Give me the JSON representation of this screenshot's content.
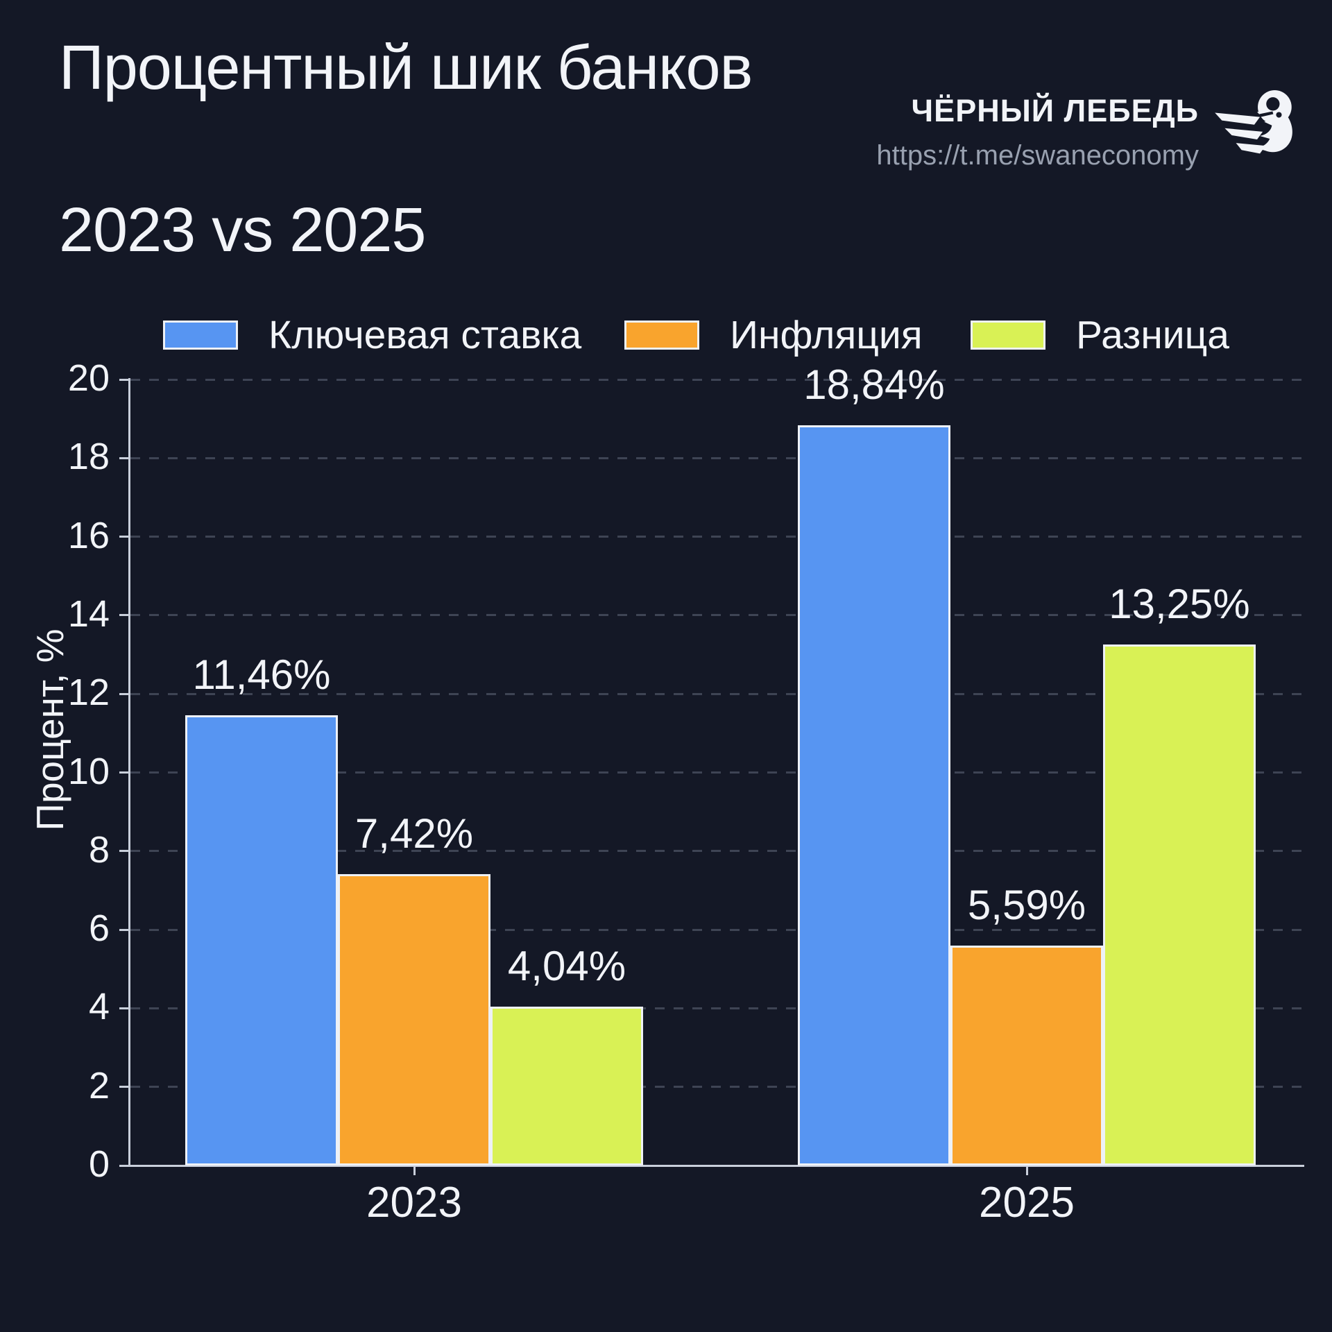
{
  "header": {
    "title_line1": "Процентный шик банков",
    "title_line2": "2023 vs 2025",
    "brand_name": "ЧЁРНЫЙ ЛЕБЕДЬ",
    "brand_url": "https://t.me/swaneconomy",
    "logo_icon": "swan-logo"
  },
  "chart_data": {
    "type": "bar",
    "title": "Процентный шик банков 2023 vs 2025",
    "categories": [
      "2023",
      "2025"
    ],
    "series": [
      {
        "name": "Ключевая ставка",
        "color": "#5795f2",
        "values": [
          11.46,
          18.84
        ],
        "value_labels": [
          "11,46%",
          "18,84%"
        ]
      },
      {
        "name": "Инфляция",
        "color": "#f9a42d",
        "values": [
          7.42,
          5.59
        ],
        "value_labels": [
          "7,42%",
          "5,59%"
        ]
      },
      {
        "name": "Разница",
        "color": "#d9f155",
        "values": [
          4.04,
          13.25
        ],
        "value_labels": [
          "4,04%",
          "13,25%"
        ]
      }
    ],
    "xlabel": "",
    "ylabel": "Процент, %",
    "ylim": [
      0,
      20
    ],
    "yticks": [
      0,
      2,
      4,
      6,
      8,
      10,
      12,
      14,
      16,
      18,
      20
    ],
    "grid": "horizontal-dashed",
    "legend_position": "top"
  },
  "style": {
    "background": "#141826",
    "text_color": "#f2f4f8",
    "muted_color": "#99a1b0",
    "axis_color": "#c9cfdb",
    "grid_color": "#3e4454",
    "bar_border_color": "#eef1f6"
  }
}
